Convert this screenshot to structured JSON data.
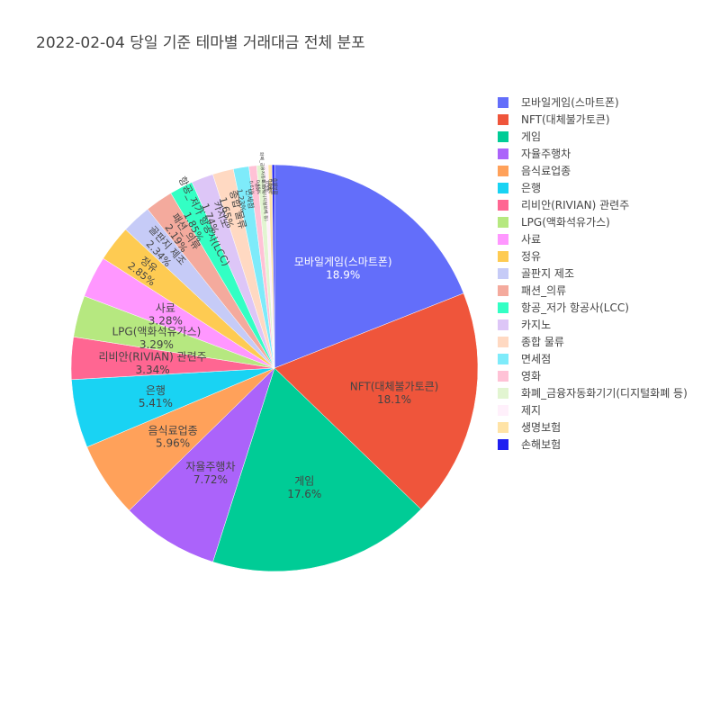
{
  "chart_data": {
    "type": "pie",
    "title": "2022-02-04 당일 기준 테마별 거래대금 전체 분포",
    "labels": [
      "모바일게임(스마트폰)",
      "NFT(대체불가토큰)",
      "게임",
      "자율주행차",
      "음식료업종",
      "은행",
      "리비안(RIVIAN) 관련주",
      "LPG(액화석유가스)",
      "사료",
      "정유",
      "골판지 제조",
      "패션_의류",
      "항공_저가 항공사(LCC)",
      "카지노",
      "종합 물류",
      "면세점",
      "영화",
      "화폐_금융자동화기기(디지털화폐 등)",
      "제지",
      "생명보험",
      "손해보험"
    ],
    "values": [
      18.9,
      18.1,
      17.6,
      7.72,
      5.96,
      5.41,
      3.34,
      3.29,
      3.28,
      2.85,
      2.34,
      2.19,
      1.85,
      1.74,
      1.65,
      1.23,
      0.61,
      0.55,
      0.35,
      0.3,
      0.19
    ],
    "value_labels": [
      "18.9%",
      "18.1%",
      "17.6%",
      "7.72%",
      "5.96%",
      "5.41%",
      "3.34%",
      "3.29%",
      "3.28%",
      "2.85%",
      "2.34%",
      "2.19%",
      "1.85%",
      "1.74%",
      "1.65%",
      "1.23%",
      "0.61%",
      "0.55%",
      "0.35%",
      "0.3%",
      "0.19%"
    ],
    "colors": [
      "#636efa",
      "#ef553b",
      "#00cc96",
      "#ab63fa",
      "#ffa15a",
      "#19d3f3",
      "#ff6692",
      "#b6e880",
      "#ff97ff",
      "#fecb52",
      "#c6cbf7",
      "#f4aa9d",
      "#33ffc4",
      "#ddc6f7",
      "#ffd9c2",
      "#7eebfa",
      "#ffc2d6",
      "#e2f5d1",
      "#fff0fb",
      "#ffe3a6",
      "#1f1ff0"
    ],
    "legend_position": "right",
    "direction": "clockwise",
    "start_angle": "12 o'clock"
  }
}
